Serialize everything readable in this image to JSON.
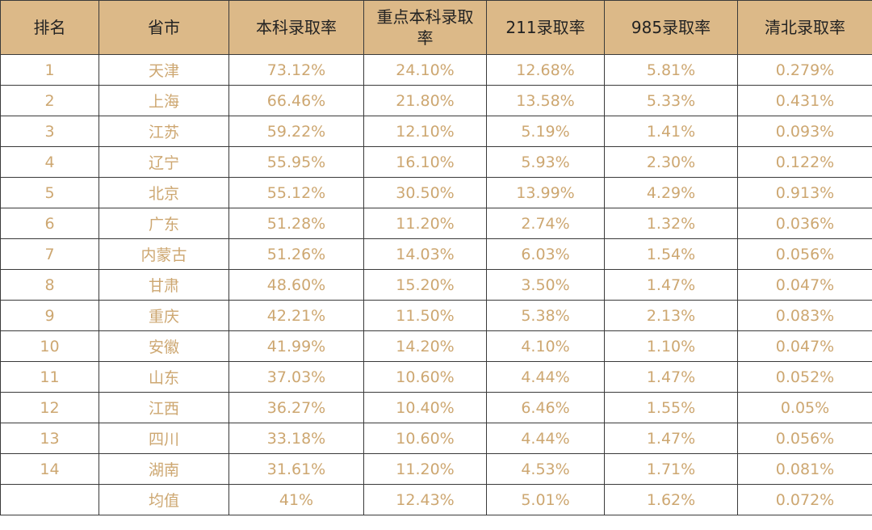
{
  "table": {
    "header": [
      "排名",
      "省市",
      "本科录取率",
      "重点本科录取率",
      "211录取率",
      "985录取率",
      "清北录取率"
    ],
    "rows": [
      [
        "1",
        "天津",
        "73.12%",
        "24.10%",
        "12.68%",
        "5.81%",
        "0.279%"
      ],
      [
        "2",
        "上海",
        "66.46%",
        "21.80%",
        "13.58%",
        "5.33%",
        "0.431%"
      ],
      [
        "3",
        "江苏",
        "59.22%",
        "12.10%",
        "5.19%",
        "1.41%",
        "0.093%"
      ],
      [
        "4",
        "辽宁",
        "55.95%",
        "16.10%",
        "5.93%",
        "2.30%",
        "0.122%"
      ],
      [
        "5",
        "北京",
        "55.12%",
        "30.50%",
        "13.99%",
        "4.29%",
        "0.913%"
      ],
      [
        "6",
        "广东",
        "51.28%",
        "11.20%",
        "2.74%",
        "1.32%",
        "0.036%"
      ],
      [
        "7",
        "内蒙古",
        "51.26%",
        "14.03%",
        "6.03%",
        "1.54%",
        "0.056%"
      ],
      [
        "8",
        "甘肃",
        "48.60%",
        "15.20%",
        "3.50%",
        "1.47%",
        "0.047%"
      ],
      [
        "9",
        "重庆",
        "42.21%",
        "11.50%",
        "5.38%",
        "2.13%",
        "0.083%"
      ],
      [
        "10",
        "安徽",
        "41.99%",
        "14.20%",
        "4.10%",
        "1.10%",
        "0.047%"
      ],
      [
        "11",
        "山东",
        "37.03%",
        "10.60%",
        "4.44%",
        "1.47%",
        "0.052%"
      ],
      [
        "12",
        "江西",
        "36.27%",
        "10.40%",
        "6.46%",
        "1.55%",
        "0.05%"
      ],
      [
        "13",
        "四川",
        "33.18%",
        "10.60%",
        "4.44%",
        "1.47%",
        "0.056%"
      ],
      [
        "14",
        "湖南",
        "31.61%",
        "11.20%",
        "4.53%",
        "1.71%",
        "0.081%"
      ]
    ],
    "average": {
      "label": "均值",
      "values": [
        "41%",
        "12.43%",
        "5.01%",
        "1.62%",
        "0.072%"
      ]
    }
  }
}
